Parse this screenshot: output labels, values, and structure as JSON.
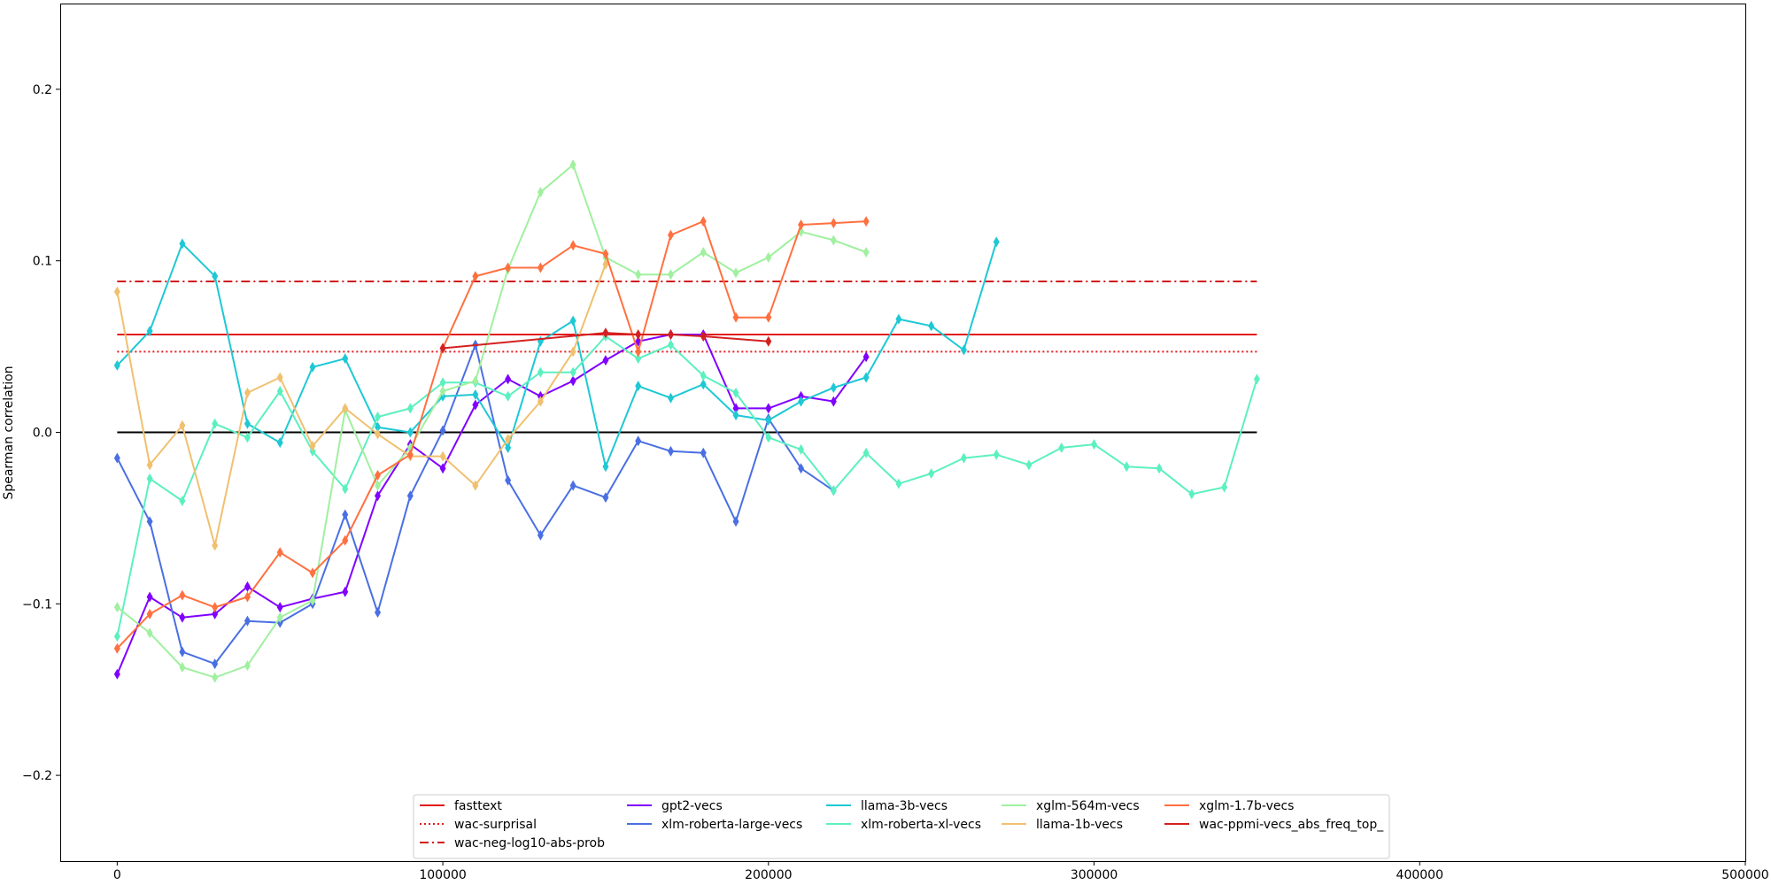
{
  "chart_data": {
    "type": "line",
    "title": "",
    "xlabel": "",
    "ylabel": "Spearman correlation",
    "xlim": [
      -17500,
      500000
    ],
    "ylim": [
      -0.25,
      0.25
    ],
    "xticks": [
      0,
      100000,
      200000,
      300000,
      400000,
      500000
    ],
    "xtick_labels": [
      "0",
      "100000",
      "200000",
      "300000",
      "400000",
      "500000"
    ],
    "yticks": [
      -0.2,
      -0.1,
      0.0,
      0.1,
      0.2
    ],
    "ytick_labels": [
      "−0.2",
      "−0.1",
      "0.0",
      "0.1",
      "0.2"
    ],
    "legend_position": "lower-center",
    "zero_line": {
      "y": 0.0,
      "x_range": [
        0,
        350000
      ],
      "color": "#000000"
    },
    "reference_lines": [
      {
        "name": "fasttext",
        "y": 0.057,
        "x_range": [
          0,
          350000
        ],
        "color": "#e31a1c",
        "style": "solid"
      },
      {
        "name": "wac-surprisal",
        "y": 0.047,
        "x_range": [
          0,
          350000
        ],
        "color": "#e31a1c",
        "style": "dotted"
      },
      {
        "name": "wac-neg-log10-abs-prob",
        "y": 0.088,
        "x_range": [
          0,
          350000
        ],
        "color": "#d11414",
        "style": "dashdot"
      }
    ],
    "series": [
      {
        "name": "gpt2-vecs",
        "color": "#8000ff",
        "x": [
          0,
          10000,
          20000,
          30000,
          40000,
          50000,
          60000,
          70000,
          80000,
          90000,
          100000,
          110000,
          120000,
          130000,
          140000,
          150000,
          160000,
          170000,
          180000,
          190000,
          200000,
          210000,
          220000,
          230000
        ],
        "y": [
          -0.141,
          -0.096,
          -0.108,
          -0.106,
          -0.09,
          -0.102,
          -0.097,
          -0.093,
          -0.037,
          -0.007,
          -0.021,
          0.016,
          0.031,
          0.021,
          0.03,
          0.042,
          0.053,
          0.057,
          0.057,
          0.014,
          0.014,
          0.021,
          0.018,
          0.044
        ]
      },
      {
        "name": "xlm-roberta-large-vecs",
        "color": "#4a6fe3",
        "x": [
          0,
          10000,
          20000,
          30000,
          40000,
          50000,
          60000,
          70000,
          80000,
          90000,
          100000,
          110000,
          120000,
          130000,
          140000,
          150000,
          160000,
          170000,
          180000,
          190000,
          200000,
          210000,
          220000
        ],
        "y": [
          -0.015,
          -0.052,
          -0.128,
          -0.135,
          -0.11,
          -0.111,
          -0.1,
          -0.048,
          -0.105,
          -0.037,
          0.001,
          0.051,
          -0.028,
          -0.06,
          -0.031,
          -0.038,
          -0.005,
          -0.011,
          -0.012,
          -0.052,
          0.008,
          -0.021,
          -0.034
        ]
      },
      {
        "name": "llama-3b-vecs",
        "color": "#1ec8d4",
        "x": [
          0,
          10000,
          20000,
          30000,
          40000,
          50000,
          60000,
          70000,
          80000,
          90000,
          100000,
          110000,
          120000,
          130000,
          140000,
          150000,
          160000,
          170000,
          180000,
          190000,
          200000,
          210000,
          220000,
          230000,
          240000,
          250000,
          260000,
          270000
        ],
        "y": [
          0.039,
          0.059,
          0.11,
          0.091,
          0.005,
          -0.006,
          0.038,
          0.043,
          0.003,
          0.0,
          0.021,
          0.022,
          -0.009,
          0.053,
          0.065,
          -0.02,
          0.027,
          0.02,
          0.028,
          0.01,
          0.007,
          0.018,
          0.026,
          0.032,
          0.066,
          0.062,
          0.048,
          0.111
        ]
      },
      {
        "name": "xlm-roberta-xl-vecs",
        "color": "#5cf0c0",
        "x": [
          0,
          10000,
          20000,
          30000,
          40000,
          50000,
          60000,
          70000,
          80000,
          90000,
          100000,
          110000,
          120000,
          130000,
          140000,
          150000,
          160000,
          170000,
          180000,
          190000,
          200000,
          210000,
          220000,
          230000,
          240000,
          250000,
          260000,
          270000,
          280000,
          290000,
          300000,
          310000,
          320000,
          330000,
          340000,
          350000
        ],
        "y": [
          -0.119,
          -0.027,
          -0.04,
          0.005,
          -0.003,
          0.024,
          -0.011,
          -0.033,
          0.009,
          0.014,
          0.029,
          0.029,
          0.021,
          0.035,
          0.035,
          0.056,
          0.043,
          0.051,
          0.033,
          0.023,
          -0.003,
          -0.01,
          -0.034,
          -0.012,
          -0.03,
          -0.024,
          -0.015,
          -0.013,
          -0.019,
          -0.009,
          -0.007,
          -0.02,
          -0.021,
          -0.036,
          -0.032,
          0.031
        ]
      },
      {
        "name": "xglm-564m-vecs",
        "color": "#a0f0a0",
        "x": [
          0,
          10000,
          20000,
          30000,
          40000,
          50000,
          60000,
          70000,
          80000,
          90000,
          100000,
          110000,
          120000,
          130000,
          140000,
          150000,
          160000,
          170000,
          180000,
          190000,
          200000,
          210000,
          220000,
          230000
        ],
        "y": [
          -0.102,
          -0.117,
          -0.137,
          -0.143,
          -0.136,
          -0.108,
          -0.098,
          0.013,
          -0.031,
          -0.009,
          0.024,
          0.03,
          0.095,
          0.14,
          0.156,
          0.102,
          0.092,
          0.092,
          0.105,
          0.093,
          0.102,
          0.117,
          0.112,
          0.105
        ]
      },
      {
        "name": "llama-1b-vecs",
        "color": "#f0c070",
        "x": [
          0,
          10000,
          20000,
          30000,
          40000,
          50000,
          60000,
          70000,
          80000,
          90000,
          100000,
          110000,
          120000,
          130000,
          140000,
          150000
        ],
        "y": [
          0.082,
          -0.019,
          0.004,
          -0.066,
          0.023,
          0.032,
          -0.008,
          0.014,
          -0.001,
          -0.014,
          -0.014,
          -0.031,
          -0.004,
          0.018,
          0.047,
          0.098
        ]
      },
      {
        "name": "xglm-1.7b-vecs",
        "color": "#ff7040",
        "x": [
          0,
          10000,
          20000,
          30000,
          40000,
          50000,
          60000,
          70000,
          80000,
          90000,
          100000,
          110000,
          120000,
          130000,
          140000,
          150000,
          160000,
          170000,
          180000,
          190000,
          200000,
          210000,
          220000,
          230000
        ],
        "y": [
          -0.126,
          -0.106,
          -0.095,
          -0.102,
          -0.096,
          -0.07,
          -0.082,
          -0.063,
          -0.025,
          -0.013,
          0.049,
          0.091,
          0.096,
          0.096,
          0.109,
          0.104,
          0.047,
          0.115,
          0.123,
          0.067,
          0.067,
          0.121,
          0.122,
          0.123
        ]
      },
      {
        "name": "wac-ppmi-vecs_abs_freq_top_",
        "color": "#d42020",
        "x": [
          100000,
          150000,
          160000,
          170000,
          180000,
          200000
        ],
        "y": [
          0.049,
          0.058,
          0.057,
          0.057,
          0.056,
          0.053
        ]
      }
    ]
  },
  "legend": {
    "columns": [
      [
        "fasttext",
        "wac-surprisal",
        "wac-neg-log10-abs-prob"
      ],
      [
        "gpt2-vecs",
        "xlm-roberta-large-vecs"
      ],
      [
        "llama-3b-vecs",
        "xlm-roberta-xl-vecs"
      ],
      [
        "xglm-564m-vecs",
        "llama-1b-vecs"
      ],
      [
        "xglm-1.7b-vecs",
        "wac-ppmi-vecs_abs_freq_top_"
      ]
    ]
  }
}
